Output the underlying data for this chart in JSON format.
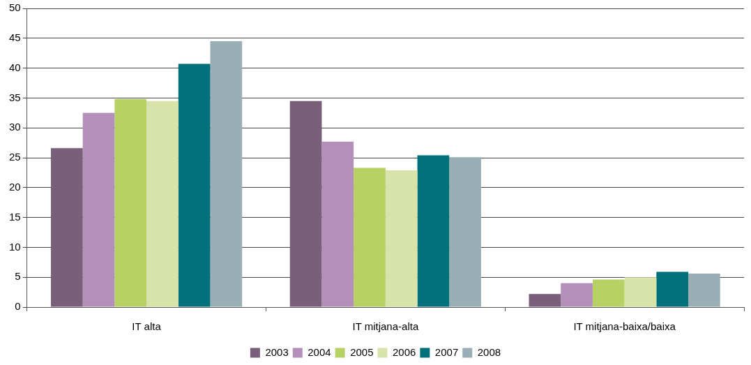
{
  "chart_data": {
    "type": "bar",
    "categories": [
      "IT alta",
      "IT mitjana-alta",
      "IT mitjana-baixa/baixa"
    ],
    "series": [
      {
        "name": "2003",
        "color": "#7a5f7b",
        "values": [
          26.6,
          34.5,
          2.2
        ]
      },
      {
        "name": "2004",
        "color": "#b48fba",
        "values": [
          32.5,
          27.7,
          4.0
        ]
      },
      {
        "name": "2005",
        "color": "#b8d165",
        "values": [
          34.8,
          23.3,
          4.6
        ]
      },
      {
        "name": "2006",
        "color": "#d7e3a8",
        "values": [
          34.5,
          22.9,
          5.0
        ]
      },
      {
        "name": "2007",
        "color": "#00707a",
        "values": [
          40.7,
          25.4,
          5.9
        ]
      },
      {
        "name": "2008",
        "color": "#99afb5",
        "values": [
          44.5,
          25.1,
          5.6
        ]
      }
    ],
    "ylim": [
      0,
      50
    ],
    "yticks": [
      0,
      5,
      10,
      15,
      20,
      25,
      30,
      35,
      40,
      45,
      50
    ],
    "grid": "y",
    "legend": "bottom"
  }
}
